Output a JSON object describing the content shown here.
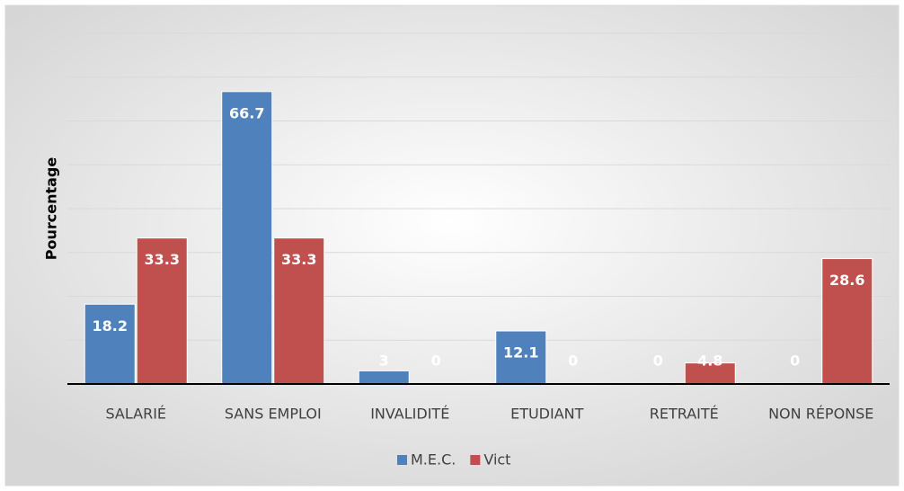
{
  "chart_data": {
    "type": "bar",
    "y_label": "Pourcentage",
    "categories": [
      "SALARIÉ",
      "SANS EMPLOI",
      "INVALIDITÉ",
      "ETUDIANT",
      "RETRAITÉ",
      "NON RÉPONSE"
    ],
    "series": [
      {
        "name": "M.E.C.",
        "color": "#4f81bd",
        "values": [
          18.2,
          66.7,
          3,
          12.1,
          0,
          0
        ]
      },
      {
        "name": "Vict",
        "color": "#c0504d",
        "values": [
          33.3,
          33.3,
          0,
          0,
          4.8,
          28.6
        ]
      }
    ],
    "ylim": [
      0,
      80
    ],
    "yticks": [
      0,
      10,
      20,
      30,
      40,
      50,
      60,
      70,
      80
    ],
    "grid": true,
    "legend": "bottom"
  }
}
